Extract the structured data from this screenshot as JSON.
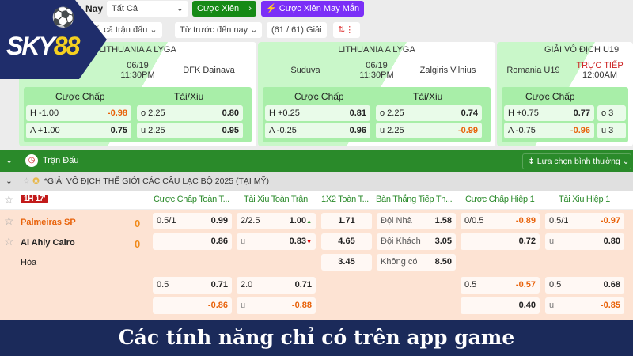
{
  "topbar": {
    "label": "Nay",
    "filter": "Tất Cả",
    "parlay": "Cược Xiên",
    "lucky_parlay": "Cược Xiên May Mắn",
    "match_filter": "tất cả trận đấu",
    "time_filter": "Từ trước đến nay",
    "league_count": "(61 / 61) Giải"
  },
  "logo": {
    "text": "SKY88"
  },
  "cards": [
    {
      "league": "LITHUANIA A LYGA",
      "home": "...ys",
      "date": "06/19",
      "time": "11:30PM",
      "away": "DFK Dainava",
      "hcp_label": "Cược Chấp",
      "ou_label": "Tài/Xiu",
      "h": "H  -1.00",
      "h_odds": "-0.98",
      "a": "A  +1.00",
      "a_odds": "0.75",
      "o": "o  2.25",
      "o_odds": "0.80",
      "u": "u  2.25",
      "u_odds": "0.95"
    },
    {
      "league": "LITHUANIA A LYGA",
      "home": "Suduva",
      "date": "06/19",
      "time": "11:30PM",
      "away": "Zalgiris Vilnius",
      "hcp_label": "Cược Chấp",
      "ou_label": "Tài/Xiu",
      "h": "H  +0.25",
      "h_odds": "0.81",
      "a": "A  -0.25",
      "a_odds": "0.96",
      "o": "o  2.25",
      "o_odds": "0.74",
      "u": "u  2.25",
      "u_odds": "-0.99"
    },
    {
      "league": "GIẢI VÔ ĐỊCH U19",
      "home": "Romania U19",
      "date": "TRỰC TIẾP",
      "time": "12:00AM",
      "hcp_label": "Cược Chấp",
      "h": "H  +0.75",
      "h_odds": "0.77",
      "a": "A  -0.75",
      "a_odds": "-0.96",
      "o": "o  3",
      "u": "u  3"
    }
  ],
  "section": {
    "title": "Trận Đấu",
    "sort": "Lựa chọn bình thường"
  },
  "league": "*GIẢI VÔ ĐỊCH THẾ GIỚI CÁC CÂU LẠC BỘ 2025 (TẠI MỸ)",
  "match": {
    "live": "1H 17'",
    "home": "Palmeiras SP",
    "home_score": "0",
    "away": "Al Ahly Cairo",
    "away_score": "0",
    "draw": "Hòa"
  },
  "columns": [
    "Cược Chấp Toàn T...",
    "Tài Xiu Toàn Trận",
    "1X2 Toàn T...",
    "Bàn Thắng Tiếp Th...",
    "Cược Chấp Hiệp 1",
    "Tài Xiu Hiệp 1"
  ],
  "odds": {
    "hcp": [
      [
        "0.5/1",
        "0.99"
      ],
      [
        "",
        "0.86"
      ],
      [
        "0.5",
        "0.71"
      ],
      [
        "",
        "-0.86"
      ]
    ],
    "ou": [
      [
        "2/2.5",
        "1.00"
      ],
      [
        "u",
        "0.83"
      ],
      [
        "2.0",
        "0.71"
      ],
      [
        "u",
        "-0.88"
      ]
    ],
    "x12": [
      "1.71",
      "4.65",
      "3.45"
    ],
    "next": [
      [
        "Đội Nhà",
        "1.58"
      ],
      [
        "Đội Khách",
        "3.05"
      ],
      [
        "Không có",
        "8.50"
      ]
    ],
    "hcp1": [
      [
        "0/0.5",
        "-0.89"
      ],
      [
        "",
        "0.72"
      ],
      [
        "0.5",
        "-0.57"
      ],
      [
        "",
        "0.40"
      ]
    ],
    "ou1": [
      [
        "0.5/1",
        "-0.97"
      ],
      [
        "u",
        "0.80"
      ],
      [
        "0.5",
        "0.68"
      ],
      [
        "u",
        "-0.85"
      ]
    ]
  },
  "banner": "Các tính năng chỉ có trên app game",
  "colors": {
    "green": "#2a8a2a",
    "orange": "#e8620a",
    "purple": "#7b2ff7",
    "navy": "#1b2a5a"
  }
}
